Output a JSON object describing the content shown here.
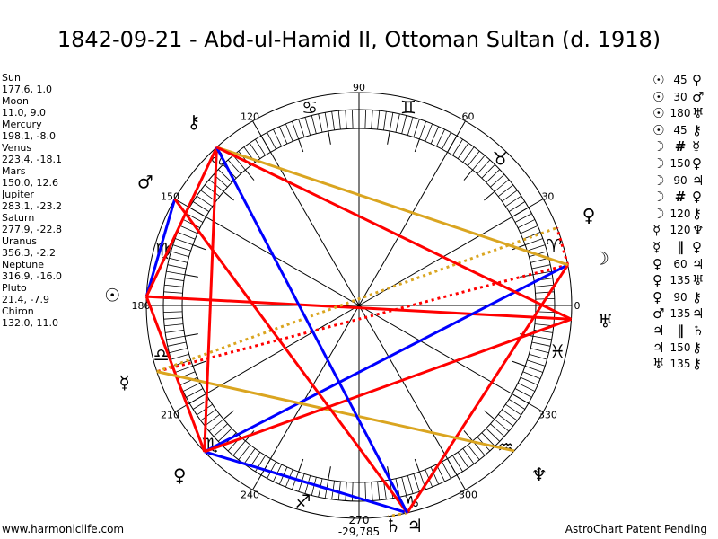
{
  "title": "1842-09-21 - Abd-ul-Hamid II, Ottoman Sultan (d. 1918)",
  "planets": [
    {
      "name": "Sun",
      "glyph": "☉",
      "pos": "177.6, 1.0",
      "lon": 177.6
    },
    {
      "name": "Moon",
      "glyph": "☽",
      "pos": "11.0, 9.0",
      "lon": 11.0
    },
    {
      "name": "Mercury",
      "glyph": "☿",
      "pos": "198.1, -8.0",
      "lon": 198.1
    },
    {
      "name": "Venus",
      "glyph": "♀",
      "pos": "223.4, -18.1",
      "lon": 223.4
    },
    {
      "name": "Mars",
      "glyph": "♂",
      "pos": "150.0, 12.6",
      "lon": 150.0
    },
    {
      "name": "Jupiter",
      "glyph": "♃",
      "pos": "283.1, -23.2",
      "lon": 283.1
    },
    {
      "name": "Saturn",
      "glyph": "♄",
      "pos": "277.9, -22.8",
      "lon": 277.9
    },
    {
      "name": "Uranus",
      "glyph": "♅",
      "pos": "356.3, -2.2",
      "lon": 356.3
    },
    {
      "name": "Neptune",
      "glyph": "♆",
      "pos": "316.9, -16.0",
      "lon": 316.9
    },
    {
      "name": "Pluto",
      "glyph": "♀",
      "pos": "21.4, -7.9",
      "lon": 21.4
    },
    {
      "name": "Chiron",
      "glyph": "⚷",
      "pos": "132.0, 11.0",
      "lon": 132.0
    }
  ],
  "aspects": [
    {
      "p1": "Sun",
      "g1": "☉",
      "aspect": "45",
      "g2": "♀",
      "p2": "Venus"
    },
    {
      "p1": "Sun",
      "g1": "☉",
      "aspect": "30",
      "g2": "♂",
      "p2": "Mars"
    },
    {
      "p1": "Sun",
      "g1": "☉",
      "aspect": "180",
      "g2": "♅",
      "p2": "Uranus"
    },
    {
      "p1": "Sun",
      "g1": "☉",
      "aspect": "45",
      "g2": "⚷",
      "p2": "Chiron"
    },
    {
      "p1": "Moon",
      "g1": "☽",
      "aspect": "#",
      "g2": "☿",
      "p2": "Mercury"
    },
    {
      "p1": "Moon",
      "g1": "☽",
      "aspect": "150",
      "g2": "♀",
      "p2": "Venus"
    },
    {
      "p1": "Moon",
      "g1": "☽",
      "aspect": "90",
      "g2": "♃",
      "p2": "Jupiter"
    },
    {
      "p1": "Moon",
      "g1": "☽",
      "aspect": "#",
      "g2": "♀",
      "p2": "Pluto"
    },
    {
      "p1": "Moon",
      "g1": "☽",
      "aspect": "120",
      "g2": "⚷",
      "p2": "Chiron"
    },
    {
      "p1": "Mercury",
      "g1": "☿",
      "aspect": "120",
      "g2": "♆",
      "p2": "Neptune"
    },
    {
      "p1": "Mercury",
      "g1": "☿",
      "aspect": "∥",
      "g2": "♀",
      "p2": "Pluto"
    },
    {
      "p1": "Venus",
      "g1": "♀",
      "aspect": "60",
      "g2": "♃",
      "p2": "Jupiter"
    },
    {
      "p1": "Venus",
      "g1": "♀",
      "aspect": "135",
      "g2": "♅",
      "p2": "Uranus"
    },
    {
      "p1": "Venus",
      "g1": "♀",
      "aspect": "90",
      "g2": "⚷",
      "p2": "Chiron"
    },
    {
      "p1": "Mars",
      "g1": "♂",
      "aspect": "135",
      "g2": "♃",
      "p2": "Jupiter"
    },
    {
      "p1": "Jupiter",
      "g1": "♃",
      "aspect": "∥",
      "g2": "♄",
      "p2": "Saturn"
    },
    {
      "p1": "Jupiter",
      "g1": "♃",
      "aspect": "150",
      "g2": "⚷",
      "p2": "Chiron"
    },
    {
      "p1": "Uranus",
      "g1": "♅",
      "aspect": "135",
      "g2": "⚷",
      "p2": "Chiron"
    }
  ],
  "signs": [
    {
      "glyph": "♈",
      "angle": 17
    },
    {
      "glyph": "♉",
      "angle": 46
    },
    {
      "glyph": "♊",
      "angle": 76
    },
    {
      "glyph": "♋",
      "angle": 104
    },
    {
      "glyph": "♌",
      "angle": 134
    },
    {
      "glyph": "♍",
      "angle": 164
    },
    {
      "glyph": "♎",
      "angle": 194
    },
    {
      "glyph": "♏",
      "angle": 223
    },
    {
      "glyph": "♐",
      "angle": 254
    },
    {
      "glyph": "♑",
      "angle": 285
    },
    {
      "glyph": "♒",
      "angle": 316
    },
    {
      "glyph": "♓",
      "angle": 347
    }
  ],
  "degree_labels": [
    "0",
    "30",
    "60",
    "90",
    "120",
    "150",
    "180",
    "210",
    "240",
    "270",
    "300",
    "330"
  ],
  "coordinate": "-29,785",
  "aspect_colors": {
    "hard": "#ff0000",
    "soft": "#0000ff",
    "trine": "#daa520"
  },
  "footer": {
    "left": "www.harmoniclife.com",
    "right": "AstroChart Patent Pending"
  }
}
